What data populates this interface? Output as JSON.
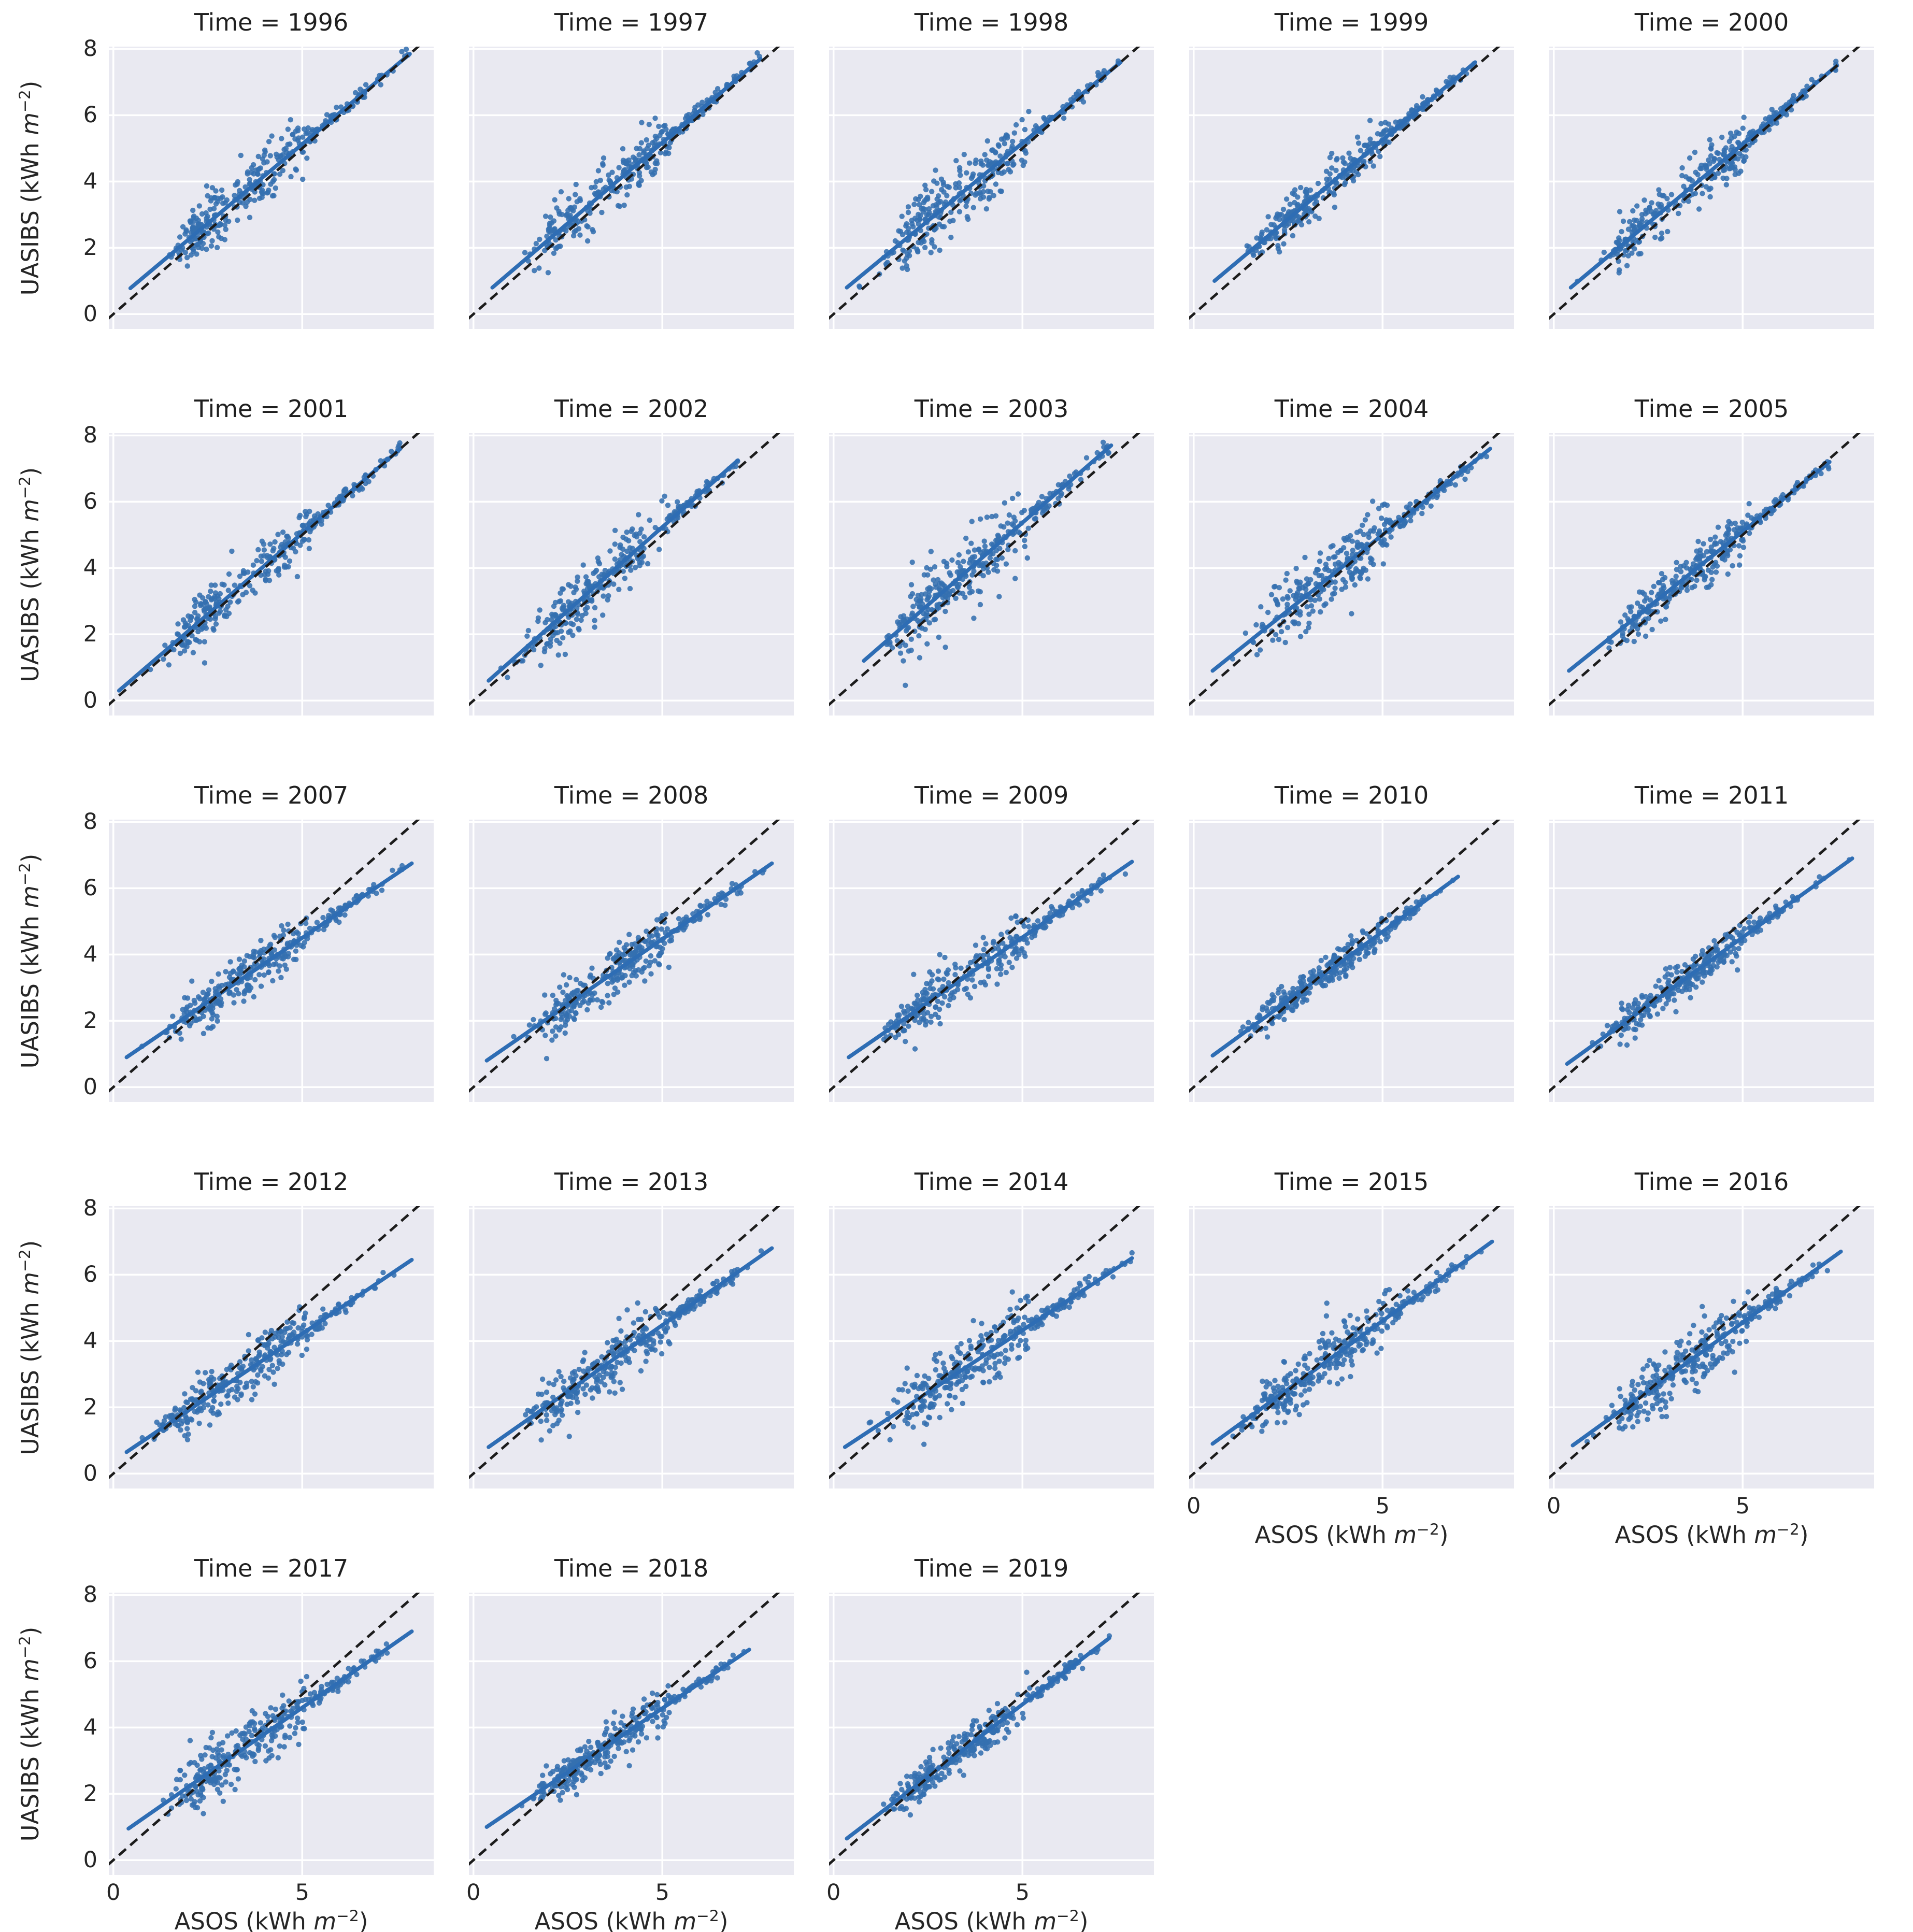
{
  "figure": {
    "kind": "facet-grid-scatter",
    "facet_variable": "Time",
    "n_panels": 23,
    "missing_facet_note": "no panel between 2005 and 2007"
  },
  "colors": {
    "scatter": "#3470af",
    "regression_line": "#2e6db4",
    "identity_line": "#1c1c1c",
    "panel_background": "#e9e9f1",
    "gridline": "#ffffff",
    "text": "#262626",
    "title_text": "#1f1f1f"
  },
  "axes": {
    "x_label": {
      "full": "ASOS (kWh m⁻²)",
      "pre": "ASOS (kWh ",
      "var": "m",
      "sup": "−2",
      "post": ")"
    },
    "y_label": {
      "full": "UASIBS (kWh m⁻²)",
      "pre": "UASIBS (kWh ",
      "var": "m",
      "sup": "−2",
      "post": ")"
    },
    "x_tick_labels": [
      "0",
      "5"
    ],
    "x_tick_values": [
      0,
      5
    ],
    "y_tick_labels": [
      "0",
      "2",
      "4",
      "6",
      "8"
    ],
    "y_tick_values": [
      0,
      2,
      4,
      6,
      8
    ],
    "x_range": [
      0,
      8
    ],
    "y_range": [
      0,
      8
    ],
    "grid": true
  },
  "chart_data": {
    "type": "scatter",
    "facet_by": "Time",
    "identity_line": {
      "style": "dashed",
      "x": [
        0,
        8
      ],
      "y": [
        0,
        8
      ]
    },
    "panels": [
      {
        "year": 1996,
        "title": "Time = 1996",
        "regression_line": {
          "x": [
            0.45,
            7.85
          ],
          "y": [
            0.78,
            7.85
          ]
        },
        "scatter": {
          "n": 320,
          "x_clusters": [
            [
              0.38,
              2.35,
              0.42
            ],
            [
              0.42,
              4.15,
              0.75
            ],
            [
              0.2,
              6.2,
              0.85
            ]
          ],
          "noise_sd": 0.42
        }
      },
      {
        "year": 1997,
        "title": "Time = 1997",
        "regression_line": {
          "x": [
            0.5,
            7.6
          ],
          "y": [
            0.8,
            7.7
          ]
        },
        "scatter": {
          "n": 320,
          "x_clusters": [
            [
              0.3,
              2.5,
              0.45
            ],
            [
              0.5,
              4.35,
              0.7
            ],
            [
              0.2,
              6.1,
              0.75
            ]
          ],
          "noise_sd": 0.4
        }
      },
      {
        "year": 1998,
        "title": "Time = 1998",
        "regression_line": {
          "x": [
            0.35,
            7.6
          ],
          "y": [
            0.8,
            7.6
          ]
        },
        "scatter": {
          "n": 320,
          "x_clusters": [
            [
              0.4,
              2.3,
              0.5
            ],
            [
              0.4,
              3.9,
              0.75
            ],
            [
              0.2,
              5.9,
              0.85
            ]
          ],
          "noise_sd": 0.5
        }
      },
      {
        "year": 1999,
        "title": "Time = 1999",
        "regression_line": {
          "x": [
            0.55,
            7.45
          ],
          "y": [
            1.0,
            7.6
          ]
        },
        "scatter": {
          "n": 330,
          "x_clusters": [
            [
              0.35,
              2.4,
              0.5
            ],
            [
              0.45,
              4.2,
              0.8
            ],
            [
              0.2,
              6.2,
              0.75
            ]
          ],
          "noise_sd": 0.33
        }
      },
      {
        "year": 2000,
        "title": "Time = 2000",
        "regression_line": {
          "x": [
            0.45,
            7.5
          ],
          "y": [
            0.8,
            7.5
          ]
        },
        "scatter": {
          "n": 320,
          "x_clusters": [
            [
              0.35,
              2.2,
              0.45
            ],
            [
              0.45,
              4.4,
              0.75
            ],
            [
              0.2,
              6.1,
              0.65
            ]
          ],
          "noise_sd": 0.4
        }
      },
      {
        "year": 2001,
        "title": "Time = 2001",
        "regression_line": {
          "x": [
            0.15,
            7.6
          ],
          "y": [
            0.3,
            7.6
          ]
        },
        "scatter": {
          "n": 320,
          "x_clusters": [
            [
              0.4,
              2.4,
              0.5
            ],
            [
              0.4,
              4.6,
              0.6
            ],
            [
              0.2,
              6.3,
              0.65
            ]
          ],
          "noise_sd": 0.38
        }
      },
      {
        "year": 2002,
        "title": "Time = 2002",
        "regression_line": {
          "x": [
            0.4,
            7.0
          ],
          "y": [
            0.6,
            7.25
          ]
        },
        "scatter": {
          "n": 320,
          "x_clusters": [
            [
              0.35,
              2.3,
              0.5
            ],
            [
              0.45,
              3.8,
              0.7
            ],
            [
              0.2,
              5.7,
              0.65
            ]
          ],
          "noise_sd": 0.42
        }
      },
      {
        "year": 2003,
        "title": "Time = 2003",
        "regression_line": {
          "x": [
            0.8,
            7.35
          ],
          "y": [
            1.2,
            7.7
          ]
        },
        "scatter": {
          "n": 330,
          "x_clusters": [
            [
              0.35,
              2.4,
              0.45
            ],
            [
              0.45,
              4.0,
              0.7
            ],
            [
              0.2,
              5.9,
              0.7
            ]
          ],
          "noise_sd": 0.55
        }
      },
      {
        "year": 2004,
        "title": "Time = 2004",
        "regression_line": {
          "x": [
            0.5,
            7.85
          ],
          "y": [
            0.9,
            7.6
          ]
        },
        "scatter": {
          "n": 330,
          "x_clusters": [
            [
              0.3,
              2.6,
              0.5
            ],
            [
              0.5,
              4.3,
              0.75
            ],
            [
              0.2,
              6.3,
              0.7
            ]
          ],
          "noise_sd": 0.5
        }
      },
      {
        "year": 2005,
        "title": "Time = 2005",
        "regression_line": {
          "x": [
            0.4,
            7.3
          ],
          "y": [
            0.9,
            7.2
          ]
        },
        "scatter": {
          "n": 320,
          "x_clusters": [
            [
              0.35,
              2.5,
              0.5
            ],
            [
              0.45,
              4.2,
              0.75
            ],
            [
              0.2,
              6.0,
              0.7
            ]
          ],
          "noise_sd": 0.32
        }
      },
      {
        "year": 2007,
        "title": "Time = 2007",
        "regression_line": {
          "x": [
            0.35,
            7.9
          ],
          "y": [
            0.9,
            6.75
          ]
        },
        "scatter": {
          "n": 320,
          "x_clusters": [
            [
              0.35,
              2.5,
              0.6
            ],
            [
              0.45,
              4.0,
              0.8
            ],
            [
              0.2,
              6.1,
              0.8
            ]
          ],
          "noise_sd": 0.35
        }
      },
      {
        "year": 2008,
        "title": "Time = 2008",
        "regression_line": {
          "x": [
            0.35,
            7.9
          ],
          "y": [
            0.8,
            6.75
          ]
        },
        "scatter": {
          "n": 330,
          "x_clusters": [
            [
              0.3,
              2.4,
              0.5
            ],
            [
              0.5,
              4.1,
              0.7
            ],
            [
              0.2,
              5.9,
              0.75
            ]
          ],
          "noise_sd": 0.38
        }
      },
      {
        "year": 2009,
        "title": "Time = 2009",
        "regression_line": {
          "x": [
            0.4,
            7.9
          ],
          "y": [
            0.9,
            6.8
          ]
        },
        "scatter": {
          "n": 320,
          "x_clusters": [
            [
              0.35,
              2.3,
              0.5
            ],
            [
              0.45,
              4.2,
              0.75
            ],
            [
              0.2,
              6.1,
              0.7
            ]
          ],
          "noise_sd": 0.4
        }
      },
      {
        "year": 2010,
        "title": "Time = 2010",
        "regression_line": {
          "x": [
            0.5,
            7.0
          ],
          "y": [
            0.95,
            6.35
          ]
        },
        "scatter": {
          "n": 320,
          "x_clusters": [
            [
              0.35,
              2.3,
              0.5
            ],
            [
              0.45,
              3.9,
              0.75
            ],
            [
              0.2,
              5.4,
              0.6
            ]
          ],
          "noise_sd": 0.27
        }
      },
      {
        "year": 2011,
        "title": "Time = 2011",
        "regression_line": {
          "x": [
            0.35,
            7.9
          ],
          "y": [
            0.7,
            6.9
          ]
        },
        "scatter": {
          "n": 320,
          "x_clusters": [
            [
              0.35,
              2.3,
              0.5
            ],
            [
              0.45,
              3.8,
              0.7
            ],
            [
              0.2,
              5.6,
              0.7
            ]
          ],
          "noise_sd": 0.3
        }
      },
      {
        "year": 2012,
        "title": "Time = 2012",
        "regression_line": {
          "x": [
            0.35,
            7.9
          ],
          "y": [
            0.65,
            6.45
          ]
        },
        "scatter": {
          "n": 320,
          "x_clusters": [
            [
              0.35,
              2.2,
              0.5
            ],
            [
              0.45,
              3.9,
              0.75
            ],
            [
              0.2,
              5.7,
              0.7
            ]
          ],
          "noise_sd": 0.4
        }
      },
      {
        "year": 2013,
        "title": "Time = 2013",
        "regression_line": {
          "x": [
            0.4,
            7.9
          ],
          "y": [
            0.8,
            6.8
          ]
        },
        "scatter": {
          "n": 330,
          "x_clusters": [
            [
              0.3,
              2.4,
              0.5
            ],
            [
              0.5,
              4.2,
              0.75
            ],
            [
              0.2,
              5.9,
              0.7
            ]
          ],
          "noise_sd": 0.42
        }
      },
      {
        "year": 2014,
        "title": "Time = 2014",
        "regression_line": {
          "x": [
            0.3,
            7.9
          ],
          "y": [
            0.8,
            6.5
          ]
        },
        "scatter": {
          "n": 330,
          "x_clusters": [
            [
              0.35,
              2.6,
              0.6
            ],
            [
              0.45,
              4.2,
              0.8
            ],
            [
              0.2,
              6.2,
              0.7
            ]
          ],
          "noise_sd": 0.48
        }
      },
      {
        "year": 2015,
        "title": "Time = 2015",
        "regression_line": {
          "x": [
            0.5,
            7.9
          ],
          "y": [
            0.9,
            7.0
          ]
        },
        "scatter": {
          "n": 330,
          "x_clusters": [
            [
              0.3,
              2.2,
              0.5
            ],
            [
              0.5,
              4.1,
              0.8
            ],
            [
              0.2,
              5.9,
              0.7
            ]
          ],
          "noise_sd": 0.42
        }
      },
      {
        "year": 2016,
        "title": "Time = 2016",
        "regression_line": {
          "x": [
            0.5,
            7.6
          ],
          "y": [
            0.85,
            6.7
          ]
        },
        "scatter": {
          "n": 330,
          "x_clusters": [
            [
              0.3,
              2.5,
              0.5
            ],
            [
              0.5,
              4.0,
              0.8
            ],
            [
              0.2,
              5.8,
              0.7
            ]
          ],
          "noise_sd": 0.45
        }
      },
      {
        "year": 2017,
        "title": "Time = 2017",
        "regression_line": {
          "x": [
            0.4,
            7.9
          ],
          "y": [
            0.95,
            6.9
          ]
        },
        "scatter": {
          "n": 330,
          "x_clusters": [
            [
              0.35,
              2.5,
              0.5
            ],
            [
              0.45,
              4.1,
              0.8
            ],
            [
              0.2,
              6.0,
              0.7
            ]
          ],
          "noise_sd": 0.45
        }
      },
      {
        "year": 2018,
        "title": "Time = 2018",
        "regression_line": {
          "x": [
            0.35,
            7.3
          ],
          "y": [
            1.0,
            6.35
          ]
        },
        "scatter": {
          "n": 330,
          "x_clusters": [
            [
              0.35,
              2.5,
              0.45
            ],
            [
              0.45,
              4.0,
              0.7
            ],
            [
              0.2,
              5.8,
              0.6
            ]
          ],
          "noise_sd": 0.3
        }
      },
      {
        "year": 2019,
        "title": "Time = 2019",
        "regression_line": {
          "x": [
            0.35,
            7.3
          ],
          "y": [
            0.65,
            6.7
          ]
        },
        "scatter": {
          "n": 330,
          "x_clusters": [
            [
              0.35,
              2.4,
              0.5
            ],
            [
              0.45,
              4.0,
              0.75
            ],
            [
              0.2,
              6.0,
              0.6
            ]
          ],
          "noise_sd": 0.3
        }
      }
    ]
  }
}
